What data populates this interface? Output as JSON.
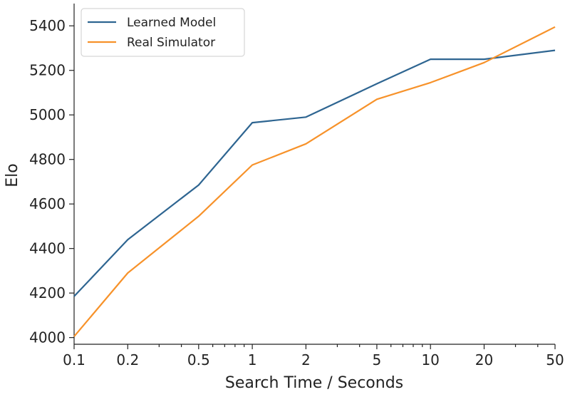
{
  "chart_data": {
    "type": "line",
    "x_scale": "log",
    "x": [
      0.1,
      0.2,
      0.5,
      1,
      2,
      5,
      10,
      20,
      50
    ],
    "xticks": [
      "0.1",
      "0.2",
      "0.5",
      "1",
      "2",
      "5",
      "10",
      "20",
      "50"
    ],
    "xminor_ticks": [
      0.3,
      0.4,
      0.6,
      0.7,
      0.8,
      0.9,
      3,
      4,
      6,
      7,
      8,
      9,
      30,
      40
    ],
    "xlim": [
      0.1,
      50
    ],
    "yticks": [
      "4000",
      "4200",
      "4400",
      "4600",
      "4800",
      "5000",
      "5200",
      "5400"
    ],
    "ylim": [
      3970,
      5500
    ],
    "xlabel": "Search Time / Seconds",
    "ylabel": "Elo",
    "grid": false,
    "legend_position": "top-left",
    "series": [
      {
        "name": "Learned Model",
        "color": "#2e6591",
        "values": [
          4185,
          4440,
          4685,
          4965,
          4990,
          5140,
          5250,
          5250,
          5290
        ]
      },
      {
        "name": "Real Simulator",
        "color": "#f7922a",
        "values": [
          4005,
          4290,
          4545,
          4775,
          4870,
          5070,
          5145,
          5235,
          5395
        ]
      }
    ]
  }
}
